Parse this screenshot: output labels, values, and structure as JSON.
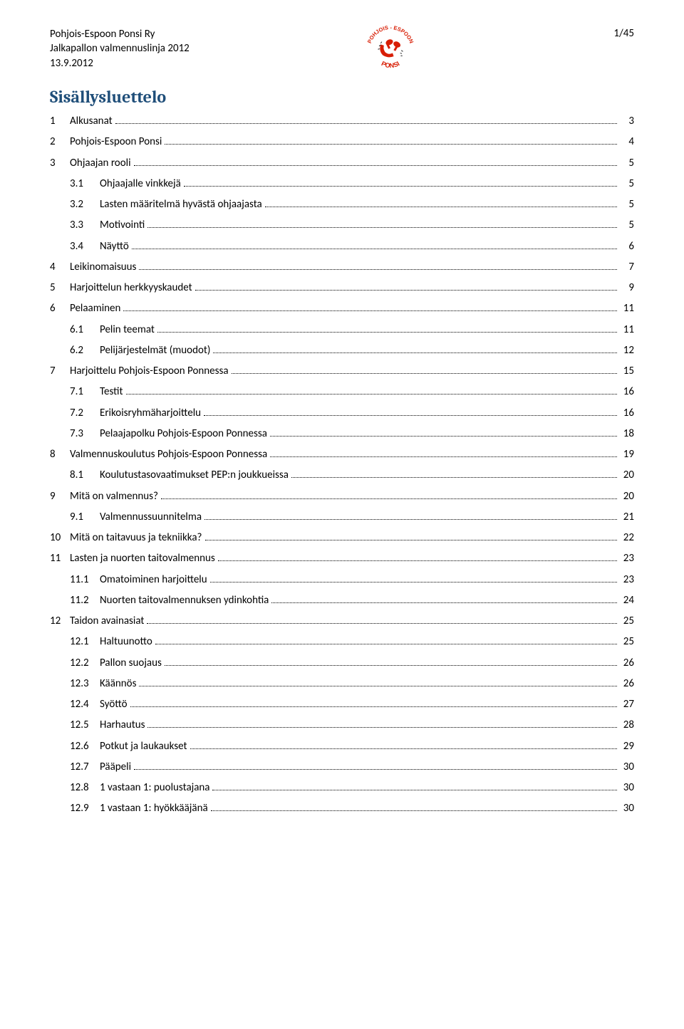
{
  "header": {
    "org": "Pohjois-Espoon Ponsi Ry",
    "doc": "Jalkapallon valmennuslinja 2012",
    "date": "13.9.2012",
    "page": "1/45",
    "logo_top_text": "POHJOIS - ESPOON",
    "logo_bottom_text": "PONSI",
    "logo_red": "#d81e05",
    "logo_black": "#222222"
  },
  "toc_title": "Sisällysluettelo",
  "title_color": "#1f4e79",
  "entries": [
    {
      "level": 1,
      "num": "1",
      "label": "Alkusanat",
      "page": "3"
    },
    {
      "level": 1,
      "num": "2",
      "label": "Pohjois-Espoon Ponsi",
      "page": "4"
    },
    {
      "level": 1,
      "num": "3",
      "label": "Ohjaajan rooli",
      "page": "5"
    },
    {
      "level": 2,
      "num": "3.1",
      "label": "Ohjaajalle vinkkejä",
      "page": "5"
    },
    {
      "level": 2,
      "num": "3.2",
      "label": "Lasten määritelmä hyvästä ohjaajasta",
      "page": "5"
    },
    {
      "level": 2,
      "num": "3.3",
      "label": "Motivointi",
      "page": "5"
    },
    {
      "level": 2,
      "num": "3.4",
      "label": "Näyttö",
      "page": "6"
    },
    {
      "level": 1,
      "num": "4",
      "label": "Leikinomaisuus",
      "page": "7"
    },
    {
      "level": 1,
      "num": "5",
      "label": "Harjoittelun herkkyyskaudet",
      "page": "9"
    },
    {
      "level": 1,
      "num": "6",
      "label": "Pelaaminen",
      "page": "11"
    },
    {
      "level": 2,
      "num": "6.1",
      "label": "Pelin teemat",
      "page": "11"
    },
    {
      "level": 2,
      "num": "6.2",
      "label": "Pelijärjestelmät (muodot)",
      "page": "12"
    },
    {
      "level": 1,
      "num": "7",
      "label": "Harjoittelu Pohjois-Espoon Ponnessa",
      "page": "15"
    },
    {
      "level": 2,
      "num": "7.1",
      "label": "Testit",
      "page": "16"
    },
    {
      "level": 2,
      "num": "7.2",
      "label": "Erikoisryhmäharjoittelu",
      "page": "16"
    },
    {
      "level": 2,
      "num": "7.3",
      "label": "Pelaajapolku Pohjois-Espoon Ponnessa",
      "page": "18"
    },
    {
      "level": 1,
      "num": "8",
      "label": "Valmennuskoulutus Pohjois-Espoon Ponnessa",
      "page": "19"
    },
    {
      "level": 2,
      "num": "8.1",
      "label": "Koulutustasovaatimukset PEP:n joukkueissa",
      "page": "20"
    },
    {
      "level": 1,
      "num": "9",
      "label": "Mitä on valmennus?",
      "page": "20"
    },
    {
      "level": 2,
      "num": "9.1",
      "label": "Valmennussuunnitelma",
      "page": "21"
    },
    {
      "level": 1,
      "num": "10",
      "label": "Mitä on taitavuus ja tekniikka?",
      "page": "22"
    },
    {
      "level": 1,
      "num": "11",
      "label": "Lasten ja nuorten taitovalmennus",
      "page": "23"
    },
    {
      "level": 2,
      "num": "11.1",
      "label": "Omatoiminen harjoittelu",
      "page": "23"
    },
    {
      "level": 2,
      "num": "11.2",
      "label": "Nuorten taitovalmennuksen ydinkohtia",
      "page": "24"
    },
    {
      "level": 1,
      "num": "12",
      "label": "Taidon avainasiat",
      "page": "25"
    },
    {
      "level": 2,
      "num": "12.1",
      "label": "Haltuunotto",
      "page": "25"
    },
    {
      "level": 2,
      "num": "12.2",
      "label": "Pallon suojaus",
      "page": "26"
    },
    {
      "level": 2,
      "num": "12.3",
      "label": "Käännös",
      "page": "26"
    },
    {
      "level": 2,
      "num": "12.4",
      "label": "Syöttö",
      "page": "27"
    },
    {
      "level": 2,
      "num": "12.5",
      "label": "Harhautus",
      "page": "28"
    },
    {
      "level": 2,
      "num": "12.6",
      "label": "Potkut ja laukaukset",
      "page": "29"
    },
    {
      "level": 2,
      "num": "12.7",
      "label": "Pääpeli",
      "page": "30"
    },
    {
      "level": 2,
      "num": "12.8",
      "label": "1 vastaan 1: puolustajana",
      "page": "30"
    },
    {
      "level": 2,
      "num": "12.9",
      "label": "1 vastaan 1: hyökkääjänä",
      "page": "30"
    }
  ]
}
